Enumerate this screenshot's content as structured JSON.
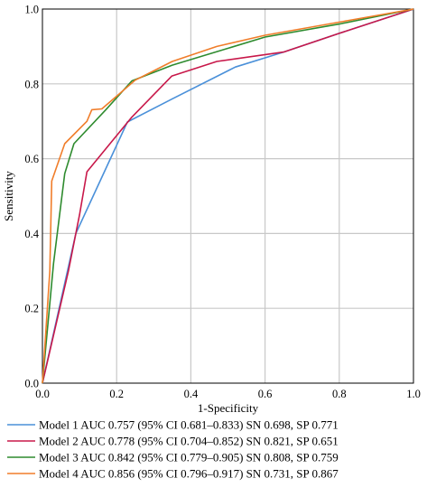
{
  "chart_data": {
    "type": "line",
    "xlabel": "1-Specificity",
    "ylabel": "Sensitivity",
    "xlim": [
      0,
      1
    ],
    "ylim": [
      0,
      1
    ],
    "x_ticks": [
      "0.0",
      "0.2",
      "0.4",
      "0.6",
      "0.8",
      "1.0"
    ],
    "y_ticks": [
      "0.0",
      "0.2",
      "0.4",
      "0.6",
      "0.8",
      "1.0"
    ],
    "grid": true,
    "legend_position": "bottom",
    "series": [
      {
        "name": "Model 1",
        "legend": "Model 1  AUC 0.757 (95% CI 0.681–0.833)  SN 0.698, SP 0.771",
        "color": "#4a90d9",
        "points": [
          [
            0,
            0
          ],
          [
            0.09,
            0.4
          ],
          [
            0.229,
            0.698
          ],
          [
            0.35,
            0.76
          ],
          [
            0.52,
            0.845
          ],
          [
            0.65,
            0.885
          ],
          [
            0.8,
            0.935
          ],
          [
            1,
            1
          ]
        ]
      },
      {
        "name": "Model 2",
        "legend": "Model 2  AUC 0.778 (95% CI 0.704–0.852)  SN 0.821, SP 0.651",
        "color": "#c8184a",
        "points": [
          [
            0,
            0
          ],
          [
            0.07,
            0.3
          ],
          [
            0.1,
            0.45
          ],
          [
            0.12,
            0.565
          ],
          [
            0.24,
            0.71
          ],
          [
            0.349,
            0.821
          ],
          [
            0.47,
            0.86
          ],
          [
            0.65,
            0.885
          ],
          [
            0.8,
            0.935
          ],
          [
            1,
            1
          ]
        ]
      },
      {
        "name": "Model 3",
        "legend": "Model 3  AUC 0.842 (95% CI 0.779–0.905)  SN 0.808, SP 0.759",
        "color": "#2e8b2e",
        "points": [
          [
            0,
            0
          ],
          [
            0.03,
            0.32
          ],
          [
            0.06,
            0.56
          ],
          [
            0.085,
            0.64
          ],
          [
            0.17,
            0.73
          ],
          [
            0.241,
            0.808
          ],
          [
            0.35,
            0.85
          ],
          [
            0.6,
            0.925
          ],
          [
            0.8,
            0.96
          ],
          [
            1,
            1
          ]
        ]
      },
      {
        "name": "Model 4",
        "legend": "Model 4  AUC 0.856 (95% CI 0.796–0.917)  SN 0.731, SP 0.867",
        "color": "#f07d2a",
        "points": [
          [
            0,
            0
          ],
          [
            0.02,
            0.3
          ],
          [
            0.025,
            0.54
          ],
          [
            0.06,
            0.64
          ],
          [
            0.12,
            0.7
          ],
          [
            0.133,
            0.731
          ],
          [
            0.16,
            0.733
          ],
          [
            0.25,
            0.81
          ],
          [
            0.35,
            0.86
          ],
          [
            0.47,
            0.9
          ],
          [
            0.6,
            0.93
          ],
          [
            0.8,
            0.965
          ],
          [
            1,
            1
          ]
        ]
      }
    ]
  }
}
